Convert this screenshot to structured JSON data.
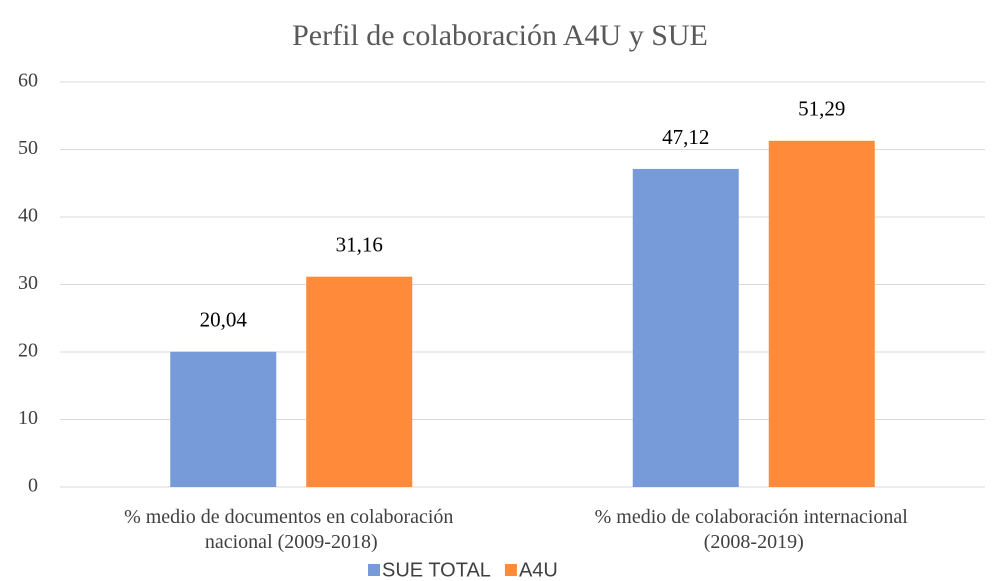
{
  "chart_data": {
    "type": "bar",
    "title": "Perfil de colaboración A4U y SUE",
    "categories": [
      "% medio de documentos en colaboración nacional (2009-2018)",
      "% medio de colaboración internacional (2008-2019)"
    ],
    "series": [
      {
        "name": "SUE TOTAL",
        "color": "#779bd9",
        "values": [
          20.04,
          47.12
        ],
        "value_labels": [
          "20,04",
          "47,12"
        ]
      },
      {
        "name": "A4U",
        "color": "#ff8b3a",
        "values": [
          31.16,
          51.29
        ],
        "value_labels": [
          "31,16",
          "51,29"
        ]
      }
    ],
    "ylim": [
      0,
      60
    ],
    "yticks": [
      0,
      10,
      20,
      30,
      40,
      50,
      60
    ],
    "grid": true,
    "legend": "bottom"
  }
}
